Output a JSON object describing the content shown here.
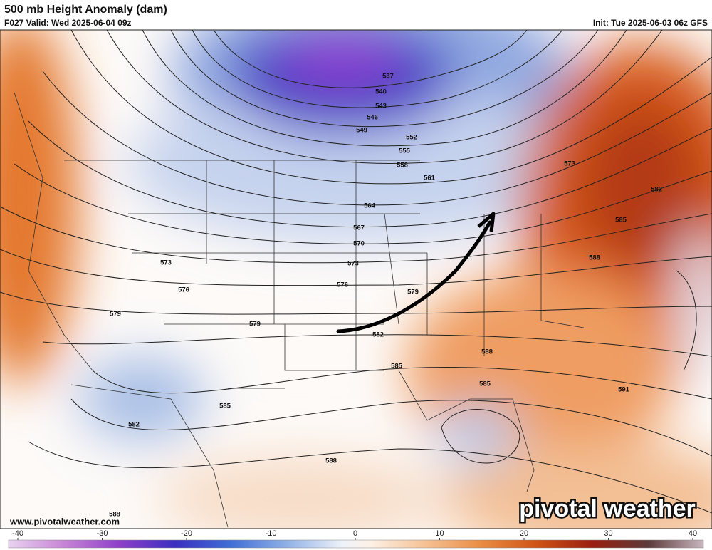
{
  "header": {
    "title": "500 mb Height Anomaly (dam)",
    "valid": "F027 Valid: Wed 2025-06-04 09z",
    "init": "Init: Tue 2025-06-03 06z GFS"
  },
  "contour_labels": [
    "537",
    "540",
    "543",
    "546",
    "549",
    "552",
    "555",
    "558",
    "561",
    "564",
    "567",
    "570",
    "573",
    "576",
    "579",
    "582",
    "585",
    "588",
    "585",
    "591",
    "573",
    "582",
    "585",
    "588",
    "573",
    "576",
    "579",
    "579",
    "585",
    "582",
    "588",
    "588"
  ],
  "watermark": "pivotal weather",
  "url": "www.pivotalweather.com",
  "colorbar": {
    "lim": [
      -40,
      40
    ],
    "ticks": [
      -40,
      -30,
      -20,
      -10,
      0,
      10,
      20,
      30,
      40
    ]
  }
}
